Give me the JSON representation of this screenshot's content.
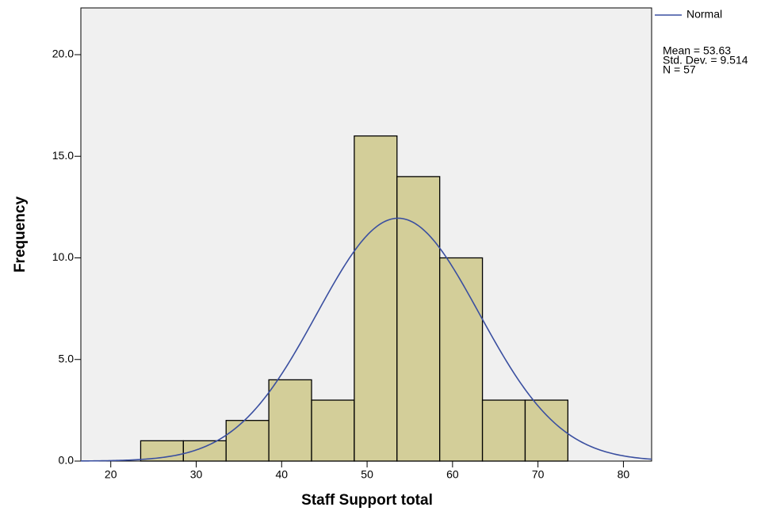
{
  "chart_data": {
    "type": "histogram",
    "x_label": "Staff Support total",
    "y_label": "Frequency",
    "bins": [
      23.5,
      28.5,
      33.5,
      38.5,
      43.5,
      48.5,
      53.5,
      58.5,
      63.5,
      68.5,
      73.5
    ],
    "counts": [
      1,
      1,
      2,
      4,
      3,
      16,
      14,
      10,
      3,
      3
    ],
    "color": "#d3ce99",
    "xlim": [
      16.5,
      83.3
    ],
    "xticks": [
      20,
      30,
      40,
      50,
      60,
      70,
      80
    ],
    "ylim": [
      0,
      22.3
    ],
    "yticks": [
      {
        "value": 0,
        "label": "0.0"
      },
      {
        "value": 5,
        "label": "5.0"
      },
      {
        "value": 10,
        "label": "10.0"
      },
      {
        "value": 15,
        "label": "15.0"
      },
      {
        "value": 20,
        "label": "20.0"
      }
    ],
    "normal": {
      "name": "Normal",
      "color": "#3a4fa0",
      "mean": 53.63,
      "sd": 9.514,
      "n": 57
    },
    "annotations": [
      "Mean = 53.63",
      "Std. Dev. = 9.514",
      "N = 57"
    ]
  }
}
